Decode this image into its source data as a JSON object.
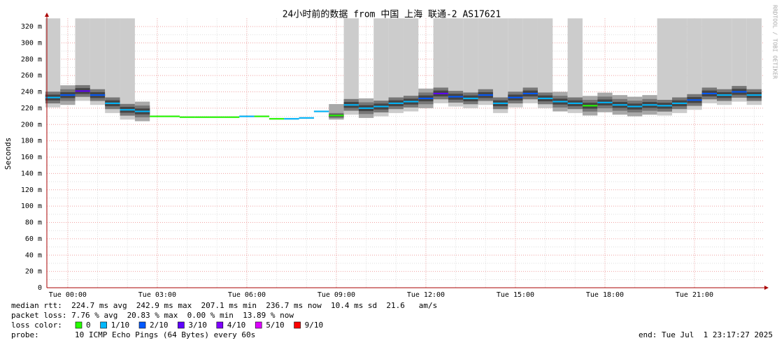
{
  "chart_data": {
    "type": "smokeping",
    "title": "24小时前的数据 from 中国 上海 联通-2 AS17621",
    "y_label": "Seconds",
    "side_text": "RRDTOOL / TOBI OETIKER",
    "x": [
      -0.5,
      0,
      0.5,
      1,
      1.5,
      2,
      2.5,
      3,
      3.5,
      4,
      4.5,
      5,
      5.5,
      6,
      6.5,
      7,
      7.5,
      8,
      8.5,
      9,
      9.5,
      10,
      10.5,
      11,
      11.5,
      12,
      12.5,
      13,
      13.5,
      14,
      14.5,
      15,
      15.5,
      16,
      16.5,
      17,
      17.5,
      18,
      18.5,
      19,
      19.5,
      20,
      20.5,
      21,
      21.5,
      22,
      22.5,
      23
    ],
    "median": [
      233,
      236,
      241,
      236,
      226,
      218,
      216,
      210,
      210,
      209,
      209,
      209,
      209,
      210,
      210,
      207,
      207,
      208,
      216,
      211,
      224,
      220,
      222,
      226,
      228,
      232,
      238,
      234,
      232,
      236,
      226,
      233,
      238,
      232,
      228,
      226,
      223,
      227,
      224,
      222,
      224,
      223,
      226,
      230,
      238,
      236,
      240,
      236
    ],
    "smoke_low": [
      221,
      224,
      229,
      224,
      214,
      206,
      204,
      209,
      209,
      208,
      208,
      208,
      208,
      209,
      209,
      206,
      206,
      207,
      215,
      206,
      212,
      208,
      210,
      214,
      216,
      220,
      226,
      222,
      220,
      224,
      214,
      221,
      226,
      220,
      216,
      214,
      211,
      215,
      212,
      210,
      212,
      211,
      214,
      218,
      226,
      224,
      228,
      224
    ],
    "smoke_high": [
      330,
      248,
      330,
      330,
      330,
      330,
      228,
      211,
      211,
      210,
      210,
      210,
      210,
      211,
      211,
      208,
      208,
      209,
      217,
      225,
      330,
      232,
      330,
      330,
      330,
      244,
      330,
      330,
      330,
      330,
      330,
      330,
      330,
      330,
      240,
      330,
      235,
      239,
      236,
      234,
      236,
      330,
      330,
      330,
      330,
      330,
      330,
      330
    ],
    "loss": [
      0.1,
      0.2,
      0.3,
      0.2,
      0.1,
      0.1,
      0.1,
      0,
      0,
      0,
      0,
      0,
      0,
      0.1,
      0,
      0,
      0.1,
      0.1,
      0.1,
      0,
      0.1,
      0.1,
      0.1,
      0.1,
      0.1,
      0.2,
      0.3,
      0.2,
      0.1,
      0.2,
      0.1,
      0.2,
      0.2,
      0.1,
      0.1,
      0.1,
      0,
      0.1,
      0.1,
      0.1,
      0.1,
      0.1,
      0.1,
      0.2,
      0.2,
      0.1,
      0.2,
      0.1
    ],
    "xlim": [
      -0.7,
      23.32
    ],
    "ylim": [
      0,
      330
    ],
    "xticks": [
      {
        "value": 0,
        "label": "Tue 00:00"
      },
      {
        "value": 3,
        "label": "Tue 03:00"
      },
      {
        "value": 6,
        "label": "Tue 06:00"
      },
      {
        "value": 9,
        "label": "Tue 09:00"
      },
      {
        "value": 12,
        "label": "Tue 12:00"
      },
      {
        "value": 15,
        "label": "Tue 15:00"
      },
      {
        "value": 18,
        "label": "Tue 18:00"
      },
      {
        "value": 21,
        "label": "Tue 21:00"
      }
    ],
    "yticks": [
      0,
      {
        "value": 20,
        "label": "20 m"
      },
      {
        "value": 40,
        "label": "40 m"
      },
      {
        "value": 60,
        "label": "60 m"
      },
      {
        "value": 80,
        "label": "80 m"
      },
      {
        "value": 100,
        "label": "100 m"
      },
      {
        "value": 120,
        "label": "120 m"
      },
      {
        "value": 140,
        "label": "140 m"
      },
      {
        "value": 160,
        "label": "160 m"
      },
      {
        "value": 180,
        "label": "180 m"
      },
      {
        "value": 200,
        "label": "200 m"
      },
      {
        "value": 220,
        "label": "220 m"
      },
      {
        "value": 240,
        "label": "240 m"
      },
      {
        "value": 260,
        "label": "260 m"
      },
      {
        "value": 280,
        "label": "280 m"
      },
      {
        "value": 300,
        "label": "300 m"
      },
      {
        "value": 320,
        "label": "320 m"
      }
    ],
    "grid": true,
    "stats": [
      "median rtt:  224.7 ms avg  242.9 ms max  207.1 ms min  236.7 ms now  10.4 ms sd  21.6   am/s",
      "packet loss: 7.76 % avg  20.83 % max  0.00 % min  13.89 % now"
    ],
    "loss_label": "loss color:",
    "loss_colors": [
      {
        "label": "0",
        "value": 0,
        "color": "#26ff00"
      },
      {
        "label": "1/10",
        "value": 0.1,
        "color": "#00b8ff"
      },
      {
        "label": "2/10",
        "value": 0.2,
        "color": "#0059ff"
      },
      {
        "label": "3/10",
        "value": 0.3,
        "color": "#5e00ff"
      },
      {
        "label": "4/10",
        "value": 0.4,
        "color": "#7e00ff"
      },
      {
        "label": "5/10",
        "value": 0.5,
        "color": "#dd00ff"
      },
      {
        "label": "9/10",
        "value": 0.9,
        "color": "#ff0000"
      }
    ],
    "probe_label": "probe:",
    "probe": "10 ICMP Echo Pings (64 Bytes) every 60s",
    "end": "end: Tue Jul  1 23:17:27 2025"
  }
}
